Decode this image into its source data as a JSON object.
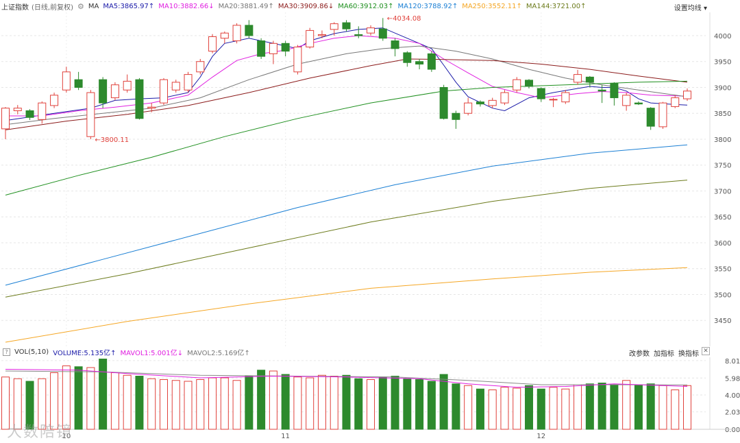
{
  "header": {
    "title": "上证指数",
    "subtitle": "(日线,前复权)",
    "ma_prefix": "MA",
    "ma_items": [
      {
        "label": "MA5:3865.97",
        "arrow": "↑",
        "color": "#1a1aa8"
      },
      {
        "label": "MA10:3882.66",
        "arrow": "↓",
        "color": "#e020e0"
      },
      {
        "label": "MA20:3881.49",
        "arrow": "↑",
        "color": "#777777"
      },
      {
        "label": "MA30:3909.86",
        "arrow": "↓",
        "color": "#8b1a1a"
      },
      {
        "label": "MA60:3912.03",
        "arrow": "↑",
        "color": "#1e8f1e"
      },
      {
        "label": "MA120:3788.92",
        "arrow": "↑",
        "color": "#1a7fd4"
      },
      {
        "label": "MA250:3552.11",
        "arrow": "↑",
        "color": "#f5a623"
      },
      {
        "label": "MA144:3721.00",
        "arrow": "↑",
        "color": "#6b7a1a"
      }
    ],
    "settings_label": "设置均线"
  },
  "volume_header": {
    "name": "VOL(5,10)",
    "items": [
      {
        "label": "VOLUME:5.135亿",
        "arrow": "↑",
        "color": "#1a1aa8"
      },
      {
        "label": "MAVOL1:5.001亿",
        "arrow": "↓",
        "color": "#e020e0"
      },
      {
        "label": "MAVOL2:5.169亿",
        "arrow": "↑",
        "color": "#777777"
      }
    ],
    "tools": [
      "改参数",
      "加指标",
      "换指标"
    ],
    "close": "✕"
  },
  "watermark": "大数陪镜",
  "colors": {
    "up": "#e0413b",
    "down": "#2d8a2d",
    "grid": "#e6e6e6",
    "axis_text": "#555555"
  },
  "chart_data": [
    {
      "type": "candlestick",
      "title": "上证指数",
      "y_ticks": [
        4000,
        3950,
        3900,
        3850,
        3800,
        3750,
        3700,
        3650,
        3600,
        3550,
        3500,
        3450
      ],
      "ylim": [
        3400,
        4045
      ],
      "x_labels": [
        {
          "index": 5,
          "label": "10"
        },
        {
          "index": 23,
          "label": "11"
        },
        {
          "index": 44,
          "label": "12"
        }
      ],
      "annotations": [
        {
          "index": 7,
          "value": 3800.11,
          "label": "3800.11",
          "side": "right"
        },
        {
          "index": 31,
          "value": 4034.08,
          "label": "4034.08",
          "side": "right"
        }
      ],
      "candles": [
        [
          3820,
          3860,
          3862,
          3800
        ],
        [
          3855,
          3860,
          3866,
          3848
        ],
        [
          3855,
          3842,
          3858,
          3837
        ],
        [
          3838,
          3870,
          3873,
          3830
        ],
        [
          3865,
          3885,
          3890,
          3860
        ],
        [
          3895,
          3930,
          3940,
          3890
        ],
        [
          3915,
          3900,
          3930,
          3895
        ],
        [
          3805,
          3890,
          3895,
          3800
        ],
        [
          3915,
          3870,
          3920,
          3860
        ],
        [
          3880,
          3905,
          3910,
          3875
        ],
        [
          3895,
          3912,
          3925,
          3890
        ],
        [
          3915,
          3840,
          3918,
          3838
        ],
        [
          3860,
          3862,
          3870,
          3852
        ],
        [
          3870,
          3915,
          3918,
          3866
        ],
        [
          3895,
          3910,
          3915,
          3890
        ],
        [
          3895,
          3925,
          3930,
          3890
        ],
        [
          3930,
          3950,
          3955,
          3925
        ],
        [
          3970,
          3998,
          4003,
          3966
        ],
        [
          3995,
          4005,
          4008,
          3985
        ],
        [
          3990,
          4020,
          4024,
          3985
        ],
        [
          4020,
          4000,
          4030,
          3995
        ],
        [
          3990,
          3960,
          3995,
          3955
        ],
        [
          3965,
          3985,
          3990,
          3945
        ],
        [
          3985,
          3970,
          3990,
          3960
        ],
        [
          3930,
          3978,
          3982,
          3925
        ],
        [
          3978,
          4010,
          4015,
          3975
        ],
        [
          4000,
          4002,
          4010,
          3995
        ],
        [
          4012,
          4023,
          4026,
          4000
        ],
        [
          4025,
          4013,
          4030,
          4008
        ],
        [
          4002,
          4000,
          4018,
          3995
        ],
        [
          4005,
          4015,
          4020,
          4000
        ],
        [
          4013,
          3995,
          4034,
          3990
        ],
        [
          3990,
          3975,
          3995,
          3960
        ],
        [
          3967,
          3948,
          3970,
          3940
        ],
        [
          3950,
          3945,
          3955,
          3935
        ],
        [
          3965,
          3935,
          3970,
          3930
        ],
        [
          3900,
          3840,
          3905,
          3838
        ],
        [
          3850,
          3838,
          3855,
          3820
        ],
        [
          3850,
          3870,
          3880,
          3846
        ],
        [
          3872,
          3868,
          3875,
          3863
        ],
        [
          3865,
          3875,
          3880,
          3860
        ],
        [
          3870,
          3890,
          3895,
          3866
        ],
        [
          3895,
          3915,
          3920,
          3890
        ],
        [
          3914,
          3902,
          3916,
          3898
        ],
        [
          3898,
          3878,
          3900,
          3872
        ],
        [
          3876,
          3877,
          3880,
          3862
        ],
        [
          3872,
          3890,
          3895,
          3868
        ],
        [
          3910,
          3925,
          3934,
          3905
        ],
        [
          3920,
          3910,
          3922,
          3900
        ],
        [
          3895,
          3893,
          3905,
          3870
        ],
        [
          3908,
          3880,
          3910,
          3865
        ],
        [
          3865,
          3885,
          3890,
          3855
        ],
        [
          3870,
          3868,
          3873,
          3866
        ],
        [
          3860,
          3825,
          3862,
          3818
        ],
        [
          3824,
          3870,
          3872,
          3820
        ],
        [
          3863,
          3880,
          3885,
          3860
        ],
        [
          3878,
          3893,
          3898,
          3874
        ]
      ],
      "ma_series": [
        {
          "name": "MA5",
          "color": "#1a1aa8",
          "values": [
            [
              0,
              3836
            ],
            [
              4,
              3850
            ],
            [
              7,
              3860
            ],
            [
              9,
              3875
            ],
            [
              11,
              3878
            ],
            [
              13,
              3880
            ],
            [
              15,
              3890
            ],
            [
              16,
              3920
            ],
            [
              17,
              3960
            ],
            [
              18,
              3985
            ],
            [
              20,
              3995
            ],
            [
              22,
              3985
            ],
            [
              24,
              3975
            ],
            [
              25,
              3990
            ],
            [
              27,
              4004
            ],
            [
              29,
              4012
            ],
            [
              31,
              4015
            ],
            [
              33,
              3995
            ],
            [
              35,
              3975
            ],
            [
              36,
              3943
            ],
            [
              37,
              3910
            ],
            [
              38,
              3882
            ],
            [
              40,
              3860
            ],
            [
              41,
              3855
            ],
            [
              43,
              3880
            ],
            [
              45,
              3890
            ],
            [
              47,
              3898
            ],
            [
              48,
              3902
            ],
            [
              49,
              3900
            ],
            [
              50,
              3900
            ],
            [
              51,
              3893
            ],
            [
              52,
              3878
            ],
            [
              53,
              3870
            ],
            [
              55,
              3867
            ],
            [
              56,
              3866
            ]
          ]
        },
        {
          "name": "MA10",
          "color": "#e020e0",
          "values": [
            [
              0,
              3845
            ],
            [
              3,
              3845
            ],
            [
              6,
              3855
            ],
            [
              9,
              3862
            ],
            [
              12,
              3870
            ],
            [
              15,
              3885
            ],
            [
              17,
              3920
            ],
            [
              19,
              3952
            ],
            [
              21,
              3965
            ],
            [
              23,
              3972
            ],
            [
              25,
              3985
            ],
            [
              27,
              3995
            ],
            [
              29,
              4000
            ],
            [
              32,
              3995
            ],
            [
              34,
              3985
            ],
            [
              36,
              3955
            ],
            [
              38,
              3928
            ],
            [
              40,
              3902
            ],
            [
              42,
              3890
            ],
            [
              44,
              3880
            ],
            [
              47,
              3888
            ],
            [
              49,
              3892
            ],
            [
              51,
              3890
            ],
            [
              53,
              3885
            ],
            [
              56,
              3883
            ]
          ]
        },
        {
          "name": "MA20",
          "color": "#777777",
          "values": [
            [
              0,
              3828
            ],
            [
              4,
              3840
            ],
            [
              8,
              3850
            ],
            [
              12,
              3860
            ],
            [
              16,
              3880
            ],
            [
              20,
              3915
            ],
            [
              24,
              3945
            ],
            [
              28,
              3965
            ],
            [
              31,
              3975
            ],
            [
              34,
              3980
            ],
            [
              37,
              3970
            ],
            [
              40,
              3955
            ],
            [
              43,
              3935
            ],
            [
              46,
              3918
            ],
            [
              49,
              3905
            ],
            [
              52,
              3895
            ],
            [
              56,
              3882
            ]
          ]
        },
        {
          "name": "MA30",
          "color": "#8b1a1a",
          "values": [
            [
              0,
              3818
            ],
            [
              5,
              3835
            ],
            [
              10,
              3848
            ],
            [
              15,
              3865
            ],
            [
              20,
              3890
            ],
            [
              25,
              3918
            ],
            [
              30,
              3942
            ],
            [
              33,
              3955
            ],
            [
              36,
              3954
            ],
            [
              40,
              3952
            ],
            [
              44,
              3945
            ],
            [
              48,
              3935
            ],
            [
              52,
              3922
            ],
            [
              56,
              3910
            ]
          ]
        },
        {
          "name": "MA60",
          "color": "#1e8f1e",
          "values": [
            [
              0,
              3692
            ],
            [
              6,
              3730
            ],
            [
              12,
              3765
            ],
            [
              18,
              3805
            ],
            [
              24,
              3840
            ],
            [
              30,
              3870
            ],
            [
              36,
              3893
            ],
            [
              40,
              3900
            ],
            [
              46,
              3905
            ],
            [
              52,
              3910
            ],
            [
              56,
              3912
            ]
          ]
        },
        {
          "name": "MA120",
          "color": "#1a7fd4",
          "values": [
            [
              0,
              3518
            ],
            [
              8,
              3568
            ],
            [
              16,
              3618
            ],
            [
              24,
              3668
            ],
            [
              32,
              3712
            ],
            [
              40,
              3748
            ],
            [
              48,
              3773
            ],
            [
              56,
              3789
            ]
          ]
        },
        {
          "name": "MA144",
          "color": "#6b7a1a",
          "values": [
            [
              0,
              3495
            ],
            [
              10,
              3540
            ],
            [
              20,
              3590
            ],
            [
              30,
              3640
            ],
            [
              40,
              3680
            ],
            [
              48,
              3705
            ],
            [
              56,
              3721
            ]
          ]
        },
        {
          "name": "MA250",
          "color": "#f5a623",
          "values": [
            [
              0,
              3408
            ],
            [
              10,
              3448
            ],
            [
              20,
              3482
            ],
            [
              30,
              3512
            ],
            [
              40,
              3530
            ],
            [
              48,
              3543
            ],
            [
              56,
              3552
            ]
          ]
        }
      ]
    },
    {
      "type": "bar",
      "title": "VOL(5,10)",
      "y_ticks": [
        8.01,
        5.98,
        4.0,
        2.03,
        0.0
      ],
      "ylim": [
        0,
        8.4
      ],
      "volumes": [
        6.1,
        5.9,
        5.6,
        5.9,
        6.6,
        7.4,
        7.3,
        7.2,
        8.2,
        6.6,
        6.3,
        6.2,
        5.9,
        5.8,
        5.7,
        5.6,
        5.8,
        6.0,
        6.0,
        5.7,
        6.2,
        6.9,
        6.8,
        6.4,
        6.1,
        6.0,
        6.3,
        6.2,
        6.3,
        5.9,
        5.8,
        6.1,
        6.2,
        5.9,
        5.8,
        5.6,
        6.4,
        5.3,
        5.1,
        4.7,
        4.6,
        4.9,
        4.8,
        5.1,
        4.7,
        4.9,
        4.7,
        5.2,
        5.3,
        5.4,
        5.2,
        5.7,
        5.2,
        5.3,
        5.1,
        4.6,
        5.1
      ],
      "mavol1": [
        [
          0,
          7.0
        ],
        [
          6,
          6.9
        ],
        [
          10,
          6.5
        ],
        [
          16,
          6.0
        ],
        [
          22,
          6.2
        ],
        [
          28,
          6.1
        ],
        [
          34,
          5.9
        ],
        [
          38,
          5.3
        ],
        [
          42,
          4.9
        ],
        [
          46,
          5.0
        ],
        [
          50,
          5.3
        ],
        [
          56,
          5.0
        ]
      ],
      "mavol2": [
        [
          0,
          6.8
        ],
        [
          8,
          6.7
        ],
        [
          16,
          6.3
        ],
        [
          24,
          6.2
        ],
        [
          32,
          6.1
        ],
        [
          38,
          5.7
        ],
        [
          44,
          5.2
        ],
        [
          50,
          5.2
        ],
        [
          56,
          5.17
        ]
      ]
    }
  ]
}
